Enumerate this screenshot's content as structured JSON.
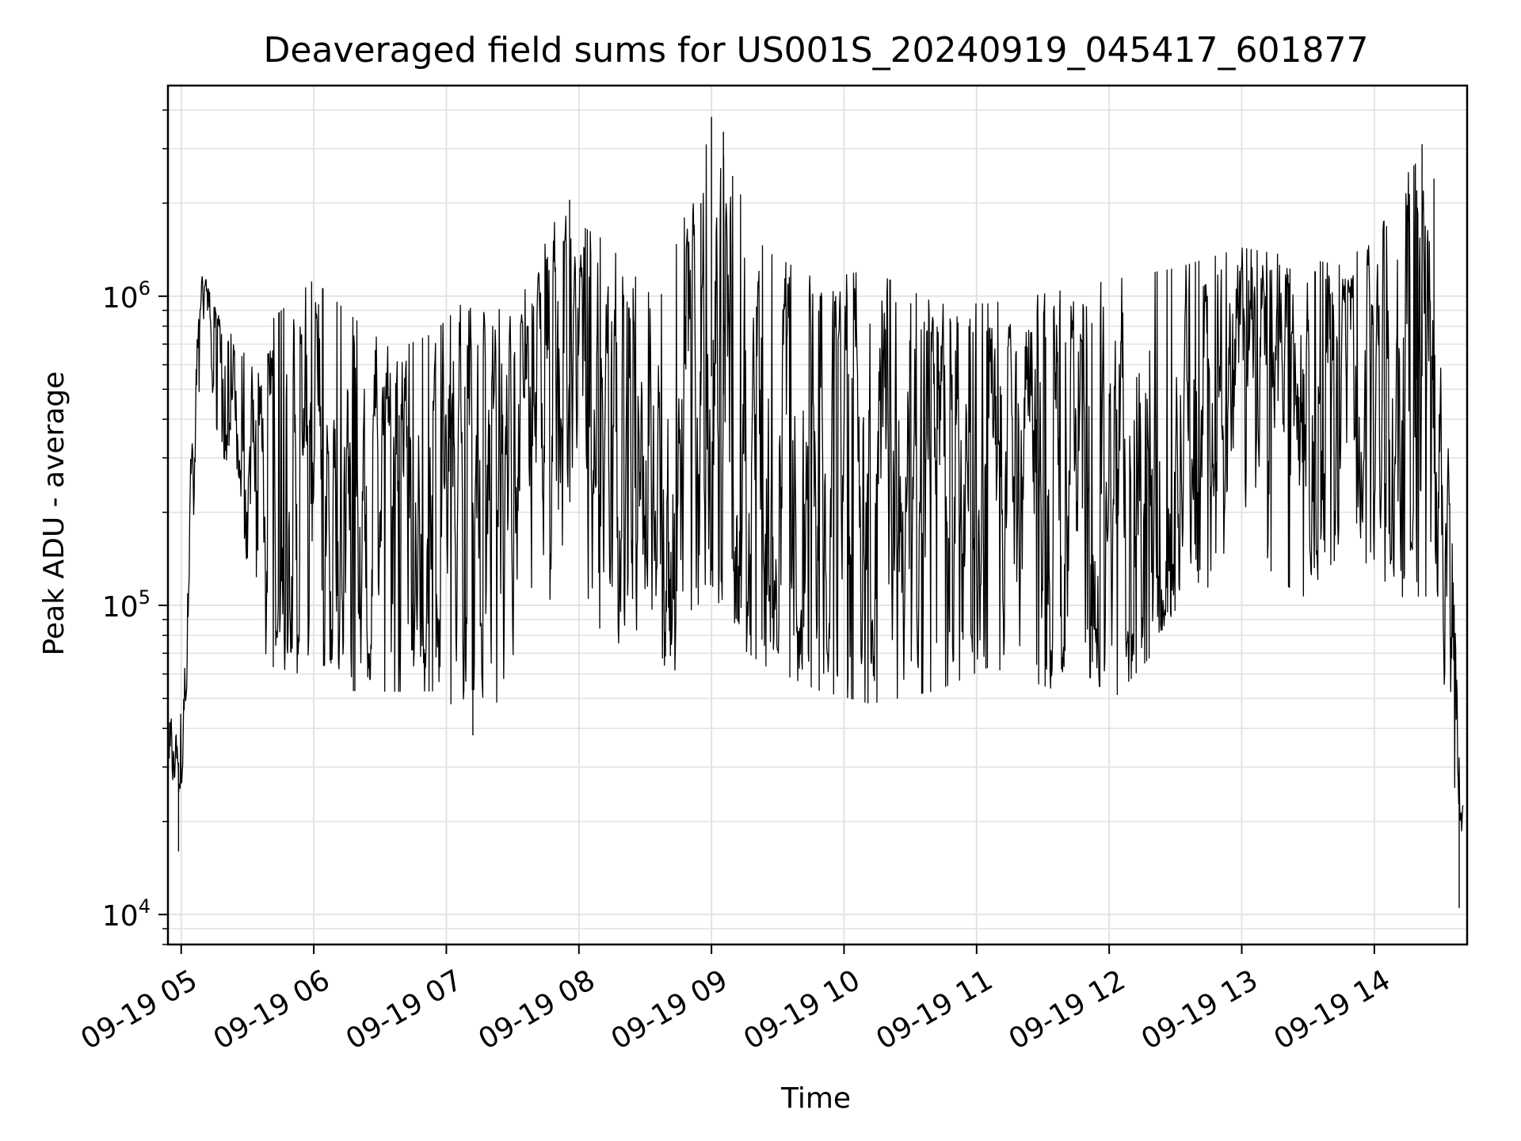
{
  "chart_data": {
    "type": "line",
    "title": "Deaveraged field sums for US001S_20240919_045417_601877",
    "xlabel": "Time",
    "ylabel": "Peak ADU - average",
    "yscale": "log",
    "ylim": [
      8000,
      4800000
    ],
    "xlim_hours": [
      4.9,
      14.7
    ],
    "grid": true,
    "line_color": "#000000",
    "x_ticks": [
      {
        "hour": 5,
        "label": "09-19 05"
      },
      {
        "hour": 6,
        "label": "09-19 06"
      },
      {
        "hour": 7,
        "label": "09-19 07"
      },
      {
        "hour": 8,
        "label": "09-19 08"
      },
      {
        "hour": 9,
        "label": "09-19 09"
      },
      {
        "hour": 10,
        "label": "09-19 10"
      },
      {
        "hour": 11,
        "label": "09-19 11"
      },
      {
        "hour": 12,
        "label": "09-19 12"
      },
      {
        "hour": 13,
        "label": "09-19 13"
      },
      {
        "hour": 14,
        "label": "09-19 14"
      }
    ],
    "y_ticks": [
      {
        "value": 10000,
        "base": "10",
        "exp": "4"
      },
      {
        "value": 100000,
        "base": "10",
        "exp": "5"
      },
      {
        "value": 1000000,
        "base": "10",
        "exp": "6"
      }
    ],
    "series": [
      {
        "envelope": [
          {
            "hour": 4.91,
            "low": 18000,
            "high": 48000
          },
          {
            "hour": 5.0,
            "low": 22000,
            "high": 45000
          },
          {
            "hour": 5.05,
            "low": 60000,
            "high": 250000
          },
          {
            "hour": 5.1,
            "low": 200000,
            "high": 800000
          },
          {
            "hour": 5.15,
            "low": 700000,
            "high": 1200000
          },
          {
            "hour": 5.22,
            "low": 500000,
            "high": 1150000
          },
          {
            "hour": 5.3,
            "low": 300000,
            "high": 850000
          },
          {
            "hour": 5.45,
            "low": 200000,
            "high": 700000
          },
          {
            "hour": 5.55,
            "low": 60000,
            "high": 600000
          },
          {
            "hour": 5.7,
            "low": 60000,
            "high": 900000
          },
          {
            "hour": 6.0,
            "low": 55000,
            "high": 1200000
          },
          {
            "hour": 6.3,
            "low": 50000,
            "high": 900000
          },
          {
            "hour": 6.6,
            "low": 50000,
            "high": 700000
          },
          {
            "hour": 6.9,
            "low": 50000,
            "high": 800000
          },
          {
            "hour": 7.2,
            "low": 40000,
            "high": 1100000
          },
          {
            "hour": 7.5,
            "low": 50000,
            "high": 900000
          },
          {
            "hour": 7.85,
            "low": 75000,
            "high": 2000000
          },
          {
            "hour": 8.2,
            "low": 80000,
            "high": 1600000
          },
          {
            "hour": 8.6,
            "low": 50000,
            "high": 1000000
          },
          {
            "hour": 9.0,
            "low": 80000,
            "high": 3800000
          },
          {
            "hour": 9.4,
            "low": 60000,
            "high": 1500000
          },
          {
            "hour": 9.8,
            "low": 50000,
            "high": 1200000
          },
          {
            "hour": 10.2,
            "low": 45000,
            "high": 1300000
          },
          {
            "hour": 10.7,
            "low": 50000,
            "high": 1000000
          },
          {
            "hour": 11.1,
            "low": 60000,
            "high": 1000000
          },
          {
            "hour": 11.6,
            "low": 50000,
            "high": 1100000
          },
          {
            "hour": 12.0,
            "low": 45000,
            "high": 1200000
          },
          {
            "hour": 12.5,
            "low": 80000,
            "high": 1300000
          },
          {
            "hour": 13.0,
            "low": 150000,
            "high": 1500000
          },
          {
            "hour": 13.45,
            "low": 100000,
            "high": 1400000
          },
          {
            "hour": 13.8,
            "low": 150000,
            "high": 1300000
          },
          {
            "hour": 14.2,
            "low": 100000,
            "high": 2500000
          },
          {
            "hour": 14.4,
            "low": 100000,
            "high": 3200000
          },
          {
            "hour": 14.5,
            "low": 60000,
            "high": 1800000
          },
          {
            "hour": 14.55,
            "low": 40000,
            "high": 400000
          },
          {
            "hour": 14.63,
            "low": 11000,
            "high": 60000
          },
          {
            "hour": 14.67,
            "low": 20000,
            "high": 60000
          }
        ],
        "spikes": [
          {
            "hour": 9.0,
            "value": 3800000
          },
          {
            "hour": 9.09,
            "value": 3400000
          },
          {
            "hour": 14.36,
            "value": 3100000
          },
          {
            "hour": 14.32,
            "value": 2200000
          },
          {
            "hour": 7.93,
            "value": 2050000
          },
          {
            "hour": 8.92,
            "value": 2000000
          },
          {
            "hour": 14.45,
            "value": 2400000
          },
          {
            "hour": 7.2,
            "value": 38000
          },
          {
            "hour": 4.98,
            "value": 16000
          },
          {
            "hour": 14.64,
            "value": 10500
          }
        ]
      }
    ]
  }
}
